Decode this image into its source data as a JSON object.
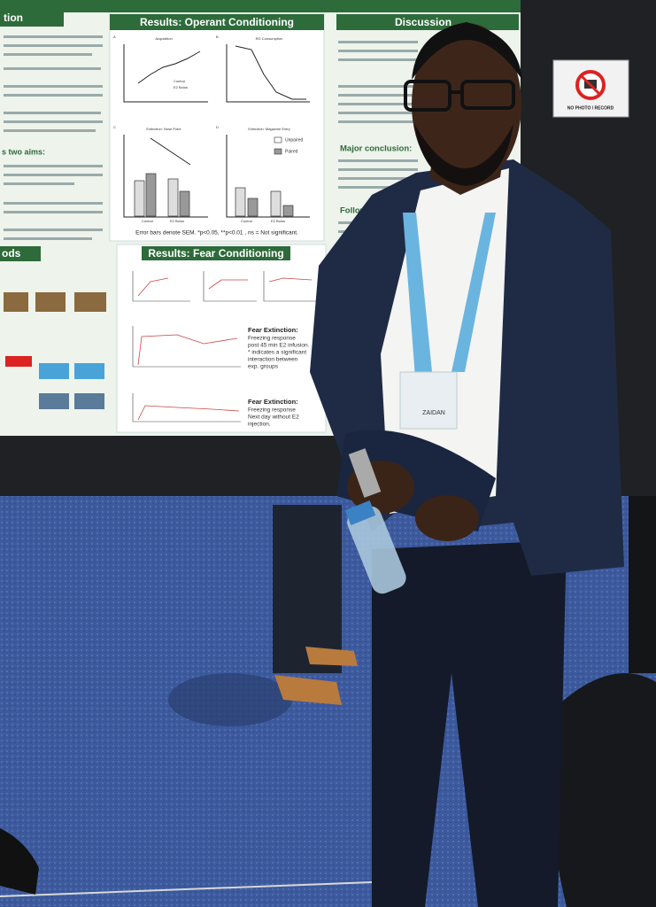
{
  "poster": {
    "left_title": "tion",
    "left_aims": "s two aims:",
    "left_methods": "ods",
    "operant_title": "Results: Operant Conditioning",
    "fear_title": "Results: Fear Conditioning",
    "discussion_title": "Discussion",
    "major_conclusion": "Major conclusion:",
    "follow_up": "Follow-up",
    "panels": [
      {
        "label": "A",
        "title": "Acquisition"
      },
      {
        "label": "B",
        "title": "RG Consumption"
      },
      {
        "label": "C",
        "title": "Extinction: Nose Poke"
      },
      {
        "label": "D",
        "title": "Extinction: Magazine Entry"
      }
    ],
    "legend_groups": [
      "Control",
      "E2 Bolus"
    ],
    "legend_pairing": [
      "Unpaired",
      "Paired"
    ],
    "error_note": "Error bars denote SEM. *p<0.05, **p<0.01 , ns = Not significant.",
    "fear_extinction_1": {
      "title": "Fear Extinction:",
      "lines": [
        "Freezing response",
        "post 45 min E2 infusion.",
        "* indicates a significant",
        "interaction between",
        "exp. groups"
      ]
    },
    "fear_extinction_2": {
      "title": "Fear Extinction:",
      "lines": [
        "Freezing response",
        "Next day without E2",
        "injection."
      ]
    }
  },
  "badge": {
    "name": "ZAIDAN"
  },
  "sign": {
    "text": "NO PHOTO / RECORD"
  }
}
